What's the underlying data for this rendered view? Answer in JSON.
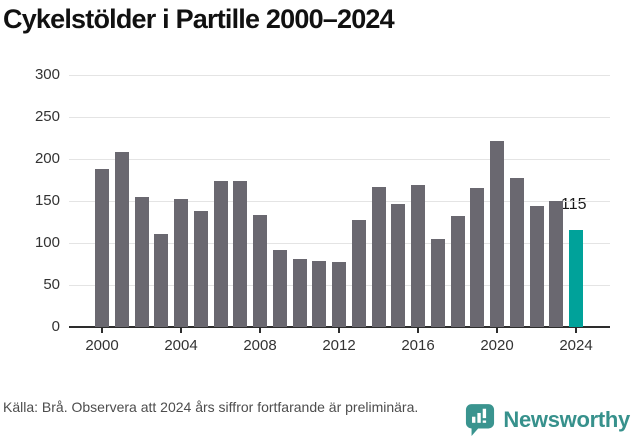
{
  "title": "Cykelstölder i Partille 2000–2024",
  "chart_data": {
    "type": "bar",
    "x": [
      2000,
      2001,
      2002,
      2003,
      2004,
      2005,
      2006,
      2007,
      2008,
      2009,
      2010,
      2011,
      2012,
      2013,
      2014,
      2015,
      2016,
      2017,
      2018,
      2019,
      2020,
      2021,
      2022,
      2023,
      2024
    ],
    "values": [
      188,
      208,
      155,
      111,
      152,
      138,
      174,
      174,
      133,
      92,
      81,
      79,
      77,
      127,
      167,
      147,
      169,
      105,
      132,
      166,
      222,
      177,
      144,
      150,
      115
    ],
    "title": "Cykelstölder i Partille 2000–2024",
    "xlabel": "",
    "ylabel": "",
    "ylim": [
      0,
      300
    ],
    "yticks": [
      0,
      50,
      100,
      150,
      200,
      250,
      300
    ],
    "xticks": [
      2000,
      2004,
      2008,
      2012,
      2016,
      2020,
      2024
    ],
    "grid": true,
    "legend": "none",
    "bar_color": "#6a6870",
    "highlight_index": 24,
    "highlight_color": "#00a29a",
    "highlight_label": "115"
  },
  "footer": {
    "source": "Källa: Brå. Observera att 2024 års siffror fortfarande är preliminära.",
    "brand": "Newsworthy"
  },
  "colors": {
    "accent_teal": "#00a29a",
    "brand_teal": "#37918c",
    "bar_gray": "#6a6870",
    "grid_gray": "#e4e4e4",
    "axis_dark": "#2d2d2d"
  }
}
